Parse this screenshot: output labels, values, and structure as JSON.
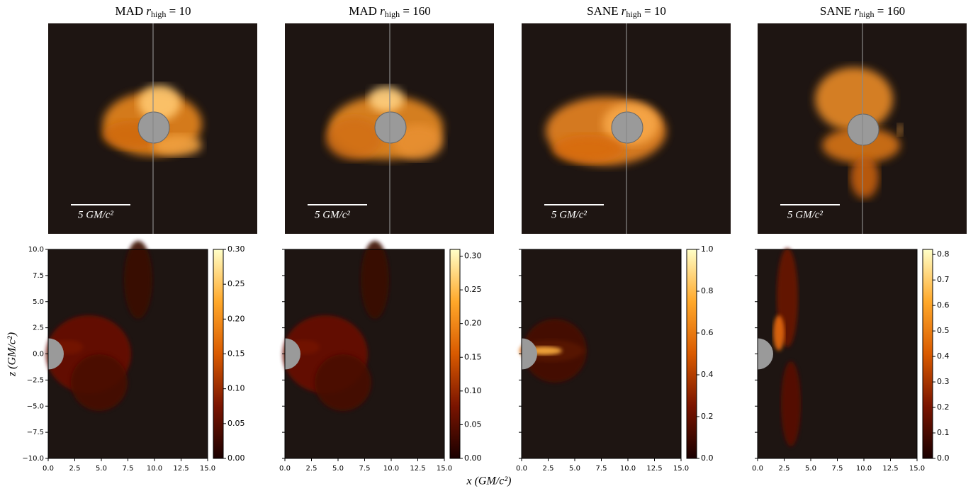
{
  "columns": [
    {
      "title": {
        "model": "MAD",
        "var": "r",
        "sub": "high",
        "rel": "= 10"
      },
      "scale_label": "5 GM/c²",
      "clim": [
        0,
        0.3
      ],
      "colorbar_ticks": [
        {
          "value": 0,
          "label": "0.00"
        },
        {
          "value": 0.05,
          "label": "0.05"
        },
        {
          "value": 0.1,
          "label": "0.10"
        },
        {
          "value": 0.15,
          "label": "0.15"
        },
        {
          "value": 0.2,
          "label": "0.20"
        },
        {
          "value": 0.25,
          "label": "0.25"
        },
        {
          "value": 0.3,
          "label": "0.30"
        }
      ]
    },
    {
      "title": {
        "model": "MAD",
        "var": "r",
        "sub": "high",
        "rel": "= 160"
      },
      "scale_label": "5 GM/c²",
      "clim": [
        0,
        0.31
      ],
      "colorbar_ticks": [
        {
          "value": 0,
          "label": "0.00"
        },
        {
          "value": 0.05,
          "label": "0.05"
        },
        {
          "value": 0.1,
          "label": "0.10"
        },
        {
          "value": 0.15,
          "label": "0.15"
        },
        {
          "value": 0.2,
          "label": "0.20"
        },
        {
          "value": 0.25,
          "label": "0.25"
        },
        {
          "value": 0.3,
          "label": "0.30"
        }
      ]
    },
    {
      "title": {
        "model": "SANE",
        "var": "r",
        "sub": "high",
        "rel": "= 10"
      },
      "scale_label": "5 GM/c²",
      "clim": [
        0,
        1.0
      ],
      "colorbar_ticks": [
        {
          "value": 0,
          "label": "0.0"
        },
        {
          "value": 0.2,
          "label": "0.2"
        },
        {
          "value": 0.4,
          "label": "0.4"
        },
        {
          "value": 0.6,
          "label": "0.6"
        },
        {
          "value": 0.8,
          "label": "0.8"
        },
        {
          "value": 1,
          "label": "1.0"
        }
      ]
    },
    {
      "title": {
        "model": "SANE",
        "var": "r",
        "sub": "high",
        "rel": "= 160"
      },
      "scale_label": "5 GM/c²",
      "clim": [
        0,
        0.82
      ],
      "colorbar_ticks": [
        {
          "value": 0,
          "label": "0.0"
        },
        {
          "value": 0.1,
          "label": "0.1"
        },
        {
          "value": 0.2,
          "label": "0.2"
        },
        {
          "value": 0.3,
          "label": "0.3"
        },
        {
          "value": 0.4,
          "label": "0.4"
        },
        {
          "value": 0.5,
          "label": "0.5"
        },
        {
          "value": 0.6,
          "label": "0.6"
        },
        {
          "value": 0.7,
          "label": "0.7"
        },
        {
          "value": 0.8,
          "label": "0.8"
        }
      ]
    }
  ],
  "xlim": [
    0,
    15
  ],
  "xticks": [
    {
      "value": 0,
      "label": "0.0"
    },
    {
      "value": 2.5,
      "label": "2.5"
    },
    {
      "value": 5,
      "label": "5.0"
    },
    {
      "value": 7.5,
      "label": "7.5"
    },
    {
      "value": 10,
      "label": "10.0"
    },
    {
      "value": 12.5,
      "label": "12.5"
    },
    {
      "value": 15,
      "label": "15.0"
    }
  ],
  "ylim": [
    -10,
    10
  ],
  "yticks": [
    {
      "value": -10,
      "label": "−10.0"
    },
    {
      "value": -7.5,
      "label": "−7.5"
    },
    {
      "value": -5,
      "label": "−5.0"
    },
    {
      "value": -2.5,
      "label": "−2.5"
    },
    {
      "value": 0,
      "label": "0.0"
    },
    {
      "value": 2.5,
      "label": "2.5"
    },
    {
      "value": 5,
      "label": "5.0"
    },
    {
      "value": 7.5,
      "label": "7.5"
    },
    {
      "value": 10,
      "label": "10.0"
    }
  ],
  "xlabel": "x (GM/c²)",
  "ylabel": "z (GM/c²)"
}
